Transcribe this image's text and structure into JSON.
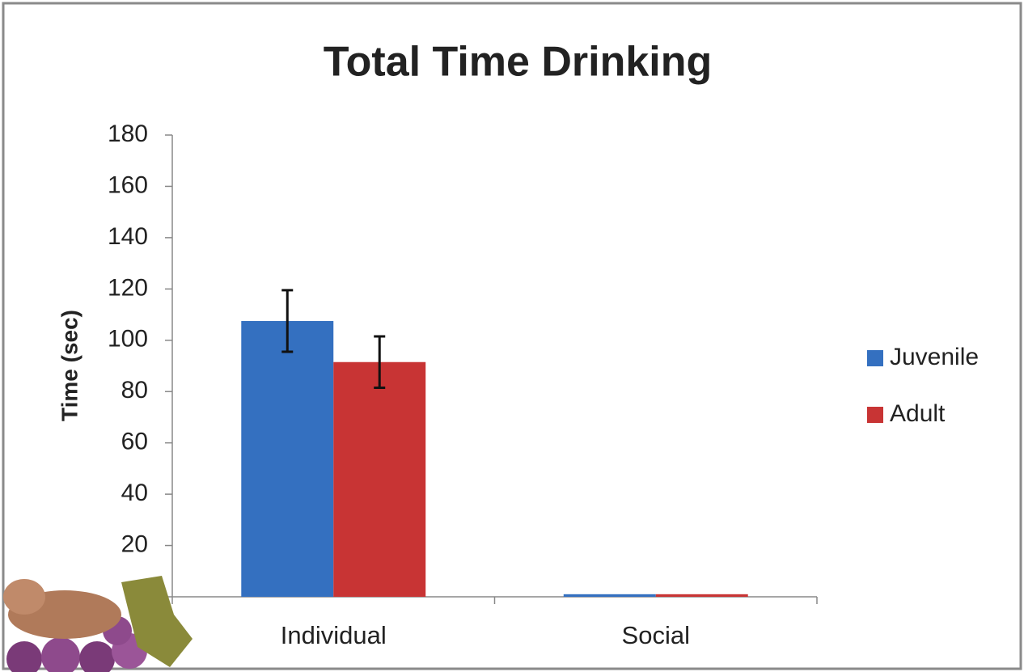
{
  "chart_data": {
    "type": "bar",
    "title": "Total Time Drinking",
    "y_label": "Time (sec)",
    "categories": [
      "Individual",
      "Social"
    ],
    "series": [
      {
        "name": "Juvenile",
        "color": "#3470c0",
        "values": [
          107.5,
          1
        ],
        "errors": [
          12,
          0
        ]
      },
      {
        "name": "Adult",
        "color": "#c83434",
        "values": [
          91.5,
          1
        ],
        "errors": [
          10,
          0
        ]
      }
    ],
    "ylim": [
      0,
      180
    ],
    "yticks": [
      0,
      20,
      40,
      60,
      80,
      100,
      120,
      140,
      160,
      180
    ],
    "grid": false,
    "legend": "right"
  }
}
